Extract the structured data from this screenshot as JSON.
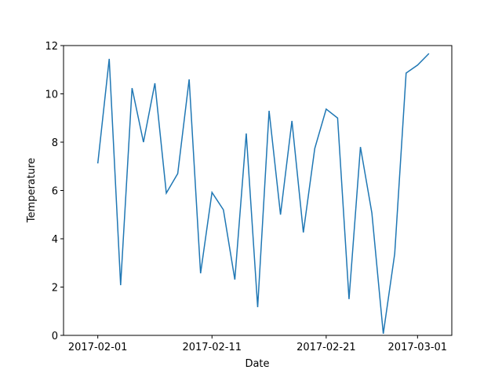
{
  "chart_data": {
    "type": "line",
    "xlabel": "Date",
    "ylabel": "Temperature",
    "x": [
      "2017-02-01",
      "2017-02-02",
      "2017-02-03",
      "2017-02-04",
      "2017-02-05",
      "2017-02-06",
      "2017-02-07",
      "2017-02-08",
      "2017-02-09",
      "2017-02-10",
      "2017-02-11",
      "2017-02-12",
      "2017-02-13",
      "2017-02-14",
      "2017-02-15",
      "2017-02-16",
      "2017-02-17",
      "2017-02-18",
      "2017-02-19",
      "2017-02-20",
      "2017-02-21",
      "2017-02-22",
      "2017-02-23",
      "2017-02-24",
      "2017-02-25",
      "2017-02-26",
      "2017-02-27",
      "2017-02-28",
      "2017-03-01",
      "2017-03-02"
    ],
    "series": [
      {
        "name": "Temperature",
        "color": "#1f77b4",
        "values": [
          7.12,
          11.45,
          2.08,
          10.24,
          8.0,
          10.44,
          5.89,
          6.7,
          10.6,
          2.57,
          5.92,
          5.2,
          2.31,
          8.36,
          1.17,
          9.3,
          5.0,
          8.88,
          4.26,
          7.74,
          9.37,
          9.0,
          1.5,
          7.8,
          5.07,
          0.07,
          3.38,
          10.86,
          11.19,
          11.67
        ]
      }
    ],
    "xlim": [
      "2017-01-29",
      "2017-03-04"
    ],
    "xticks": [
      "2017-02-01",
      "2017-02-11",
      "2017-02-21",
      "2017-03-01"
    ],
    "ylim": [
      0,
      12
    ],
    "yticks": [
      0,
      2,
      4,
      6,
      8,
      10,
      12
    ],
    "grid": false
  }
}
